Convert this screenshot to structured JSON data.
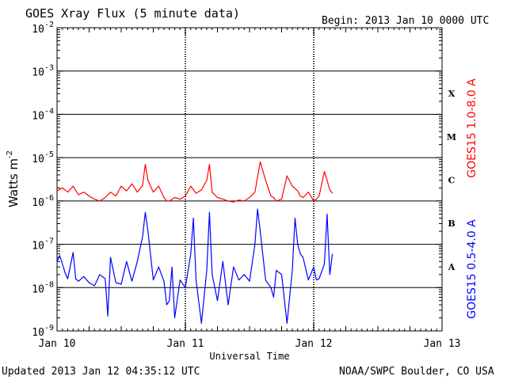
{
  "chart_data": {
    "type": "line",
    "title": "GOES Xray Flux (5 minute data)",
    "begin_label": "Begin:  2013 Jan 10 0000 UTC",
    "ylabel": "Watts m",
    "ylabel_exp": "-2",
    "xlabel": "Universal Time",
    "yscale": "log",
    "ylim": [
      1e-09,
      0.01
    ],
    "y_tick_labels": [
      {
        "base": "10",
        "exp": "-9",
        "value": 1e-09
      },
      {
        "base": "10",
        "exp": "-8",
        "value": 1e-08
      },
      {
        "base": "10",
        "exp": "-7",
        "value": 1e-07
      },
      {
        "base": "10",
        "exp": "-6",
        "value": 1e-06
      },
      {
        "base": "10",
        "exp": "-5",
        "value": 1e-05
      },
      {
        "base": "10",
        "exp": "-4",
        "value": 0.0001
      },
      {
        "base": "10",
        "exp": "-3",
        "value": 0.001
      },
      {
        "base": "10",
        "exp": "-2",
        "value": 0.01
      }
    ],
    "xlim": [
      0,
      72
    ],
    "x_ticks": [
      {
        "label": "Jan 10",
        "hours": 0
      },
      {
        "label": "Jan 11",
        "hours": 24
      },
      {
        "label": "Jan 12",
        "hours": 48
      },
      {
        "label": "Jan 13",
        "hours": 72
      }
    ],
    "flare_classes": [
      {
        "label": "A",
        "low": 1e-08,
        "high": 1e-07
      },
      {
        "label": "B",
        "low": 1e-07,
        "high": 1e-06
      },
      {
        "label": "C",
        "low": 1e-06,
        "high": 1e-05
      },
      {
        "label": "M",
        "low": 1e-05,
        "high": 0.0001
      },
      {
        "label": "X",
        "low": 0.0001,
        "high": 0.001
      }
    ],
    "grid_horizontal_at": [
      1e-08,
      1e-07,
      1e-06,
      1e-05,
      0.0001,
      0.001
    ],
    "series": [
      {
        "name": "GOES15 1.0-8.0 A",
        "color": "#ff0000",
        "x_hours": [
          0,
          1,
          2,
          3,
          4,
          5,
          6,
          7,
          8,
          9,
          10,
          11,
          12,
          13,
          14,
          15,
          16,
          16.5,
          17,
          18,
          19,
          20,
          20.5,
          21,
          22,
          23,
          24,
          25,
          26,
          27,
          28,
          28.5,
          29,
          30,
          31,
          32,
          33,
          34,
          35,
          36,
          37,
          38,
          39,
          40,
          40.5,
          41,
          42,
          43,
          44,
          45,
          45.5,
          46,
          47,
          48,
          48.5,
          49,
          50,
          50.5,
          51,
          51.5
        ],
        "y": [
          1.7e-06,
          2e-06,
          1.6e-06,
          2.2e-06,
          1.4e-06,
          1.6e-06,
          1.3e-06,
          1.1e-06,
          1e-06,
          1.2e-06,
          1.6e-06,
          1.3e-06,
          2.2e-06,
          1.7e-06,
          2.5e-06,
          1.6e-06,
          2.3e-06,
          7e-06,
          3e-06,
          1.6e-06,
          2.2e-06,
          1.2e-06,
          1e-06,
          1e-06,
          1.2e-06,
          1.1e-06,
          1.3e-06,
          2.2e-06,
          1.5e-06,
          1.8e-06,
          3e-06,
          7e-06,
          1.6e-06,
          1.2e-06,
          1.1e-06,
          1e-06,
          9.5e-07,
          1.05e-06,
          1e-06,
          1.2e-06,
          1.6e-06,
          8e-06,
          3e-06,
          1.3e-06,
          1.2e-06,
          1e-06,
          1.1e-06,
          3.8e-06,
          2.2e-06,
          1.7e-06,
          1.3e-06,
          1.2e-06,
          1.6e-06,
          1e-06,
          1.1e-06,
          1.3e-06,
          4.8e-06,
          3e-06,
          1.8e-06,
          1.5e-06
        ]
      },
      {
        "name": "GOES15 0.5-4.0 A",
        "color": "#0000ff",
        "x_hours": [
          0,
          0.5,
          1,
          1.5,
          2,
          3,
          3.5,
          4,
          5,
          6,
          7,
          8,
          9,
          9.5,
          10,
          11,
          12,
          13,
          14,
          15,
          16,
          16.5,
          17,
          18,
          19,
          20,
          20.5,
          21,
          21.5,
          22,
          23,
          24,
          25,
          25.5,
          26,
          27,
          28,
          28.5,
          29,
          30,
          31,
          32,
          33,
          34,
          35,
          36,
          37,
          37.5,
          38,
          39,
          40,
          40.5,
          41,
          42,
          43,
          44,
          44.5,
          45,
          45.5,
          46,
          47,
          48,
          48.5,
          49,
          50,
          50.5,
          51,
          51.5
        ],
        "y": [
          4e-08,
          5.5e-08,
          3.5e-08,
          2.2e-08,
          1.6e-08,
          6.5e-08,
          1.6e-08,
          1.4e-08,
          1.8e-08,
          1.3e-08,
          1.1e-08,
          2e-08,
          1.6e-08,
          2.2e-09,
          5e-08,
          1.3e-08,
          1.2e-08,
          4e-08,
          1.4e-08,
          4e-08,
          1.5e-07,
          5.5e-07,
          2e-07,
          1.5e-08,
          3e-08,
          1.4e-08,
          4e-09,
          5e-09,
          3e-08,
          2e-09,
          1.5e-08,
          1e-08,
          6e-08,
          4e-07,
          1.5e-08,
          1.5e-09,
          2.5e-08,
          5.5e-07,
          2e-08,
          5e-09,
          4e-08,
          4e-09,
          3e-08,
          1.5e-08,
          2e-08,
          1.4e-08,
          1e-07,
          6.5e-07,
          2e-07,
          1.5e-08,
          1e-08,
          6e-09,
          2.5e-08,
          2e-08,
          1.5e-09,
          2.5e-08,
          4e-07,
          1e-07,
          6e-08,
          5e-08,
          1.5e-08,
          3e-08,
          1.5e-08,
          1.6e-08,
          3.5e-08,
          5e-07,
          2e-08,
          6e-08
        ]
      }
    ]
  },
  "footer": {
    "updated": "Updated 2013 Jan 12 04:35:12 UTC",
    "source": "NOAA/SWPC Boulder, CO USA"
  }
}
